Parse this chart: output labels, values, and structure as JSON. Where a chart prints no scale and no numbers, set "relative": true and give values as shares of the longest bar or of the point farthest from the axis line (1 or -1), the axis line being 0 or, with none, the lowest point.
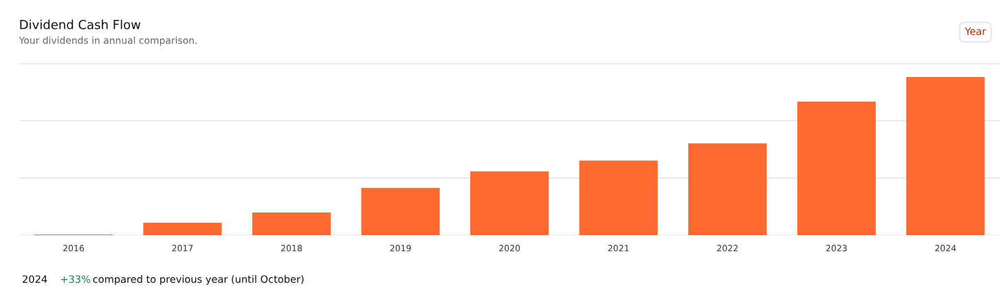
{
  "chart_data": {
    "type": "bar",
    "title": "Dividend Cash Flow",
    "subtitle": "Your dividends in annual comparison.",
    "categories": [
      "2016",
      "2017",
      "2018",
      "2019",
      "2020",
      "2021",
      "2022",
      "2023",
      "2024"
    ],
    "values": [
      0.004,
      0.078,
      0.143,
      0.299,
      0.403,
      0.472,
      0.58,
      0.844,
      1
    ],
    "color": "#ff6a30",
    "relative": true,
    "ref_lines": [
      {
        "axis": "y",
        "value": 0.361,
        "color": "#e3e3e3"
      },
      {
        "axis": "y",
        "value": 0.723,
        "color": "#e3e3e3"
      },
      {
        "axis": "y",
        "value": 1.084,
        "color": "#e3e3e3"
      },
      {
        "axis": "y",
        "value": 0,
        "color": "#e3e3e3"
      }
    ],
    "annotations": [
      "Year",
      "2024",
      "+33%",
      "compared to previous year (until October)"
    ]
  }
}
